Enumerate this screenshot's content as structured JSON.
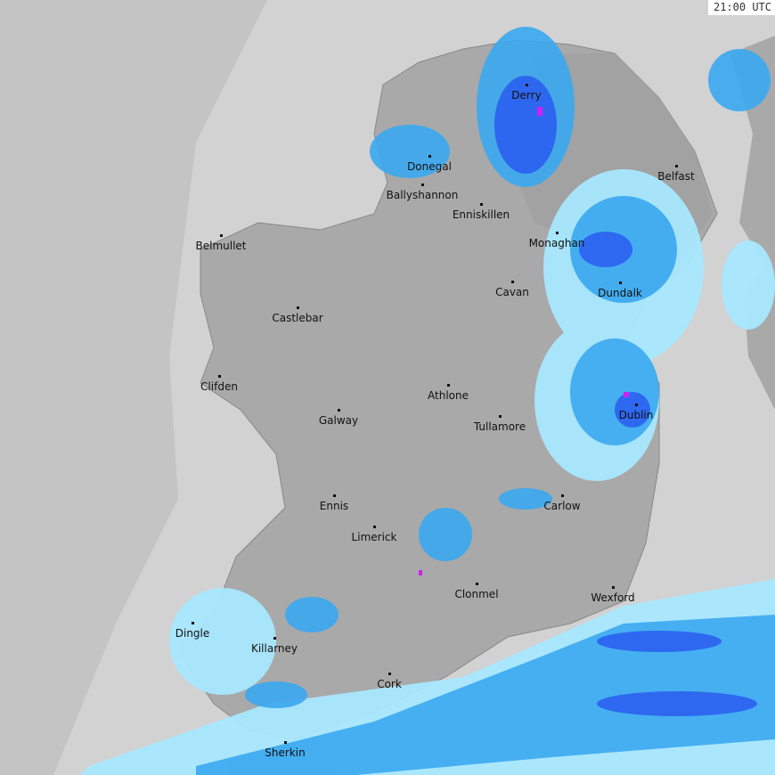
{
  "timestamp": "21:00 UTC",
  "colors": {
    "sea": "#d2d2d2",
    "ocean_far": "#c4c4c4",
    "land": "#a9a9a9",
    "rain_light": "#a8e8ff",
    "rain_moderate": "#3aa8f0",
    "rain_heavy": "#2a5cf0",
    "rain_intense": "#d020f0"
  },
  "towns": [
    {
      "name": "Derry"
    },
    {
      "name": "Donegal"
    },
    {
      "name": "Ballyshannon"
    },
    {
      "name": "Enniskillen"
    },
    {
      "name": "Belfast"
    },
    {
      "name": "Belmullet"
    },
    {
      "name": "Monaghan"
    },
    {
      "name": "Cavan"
    },
    {
      "name": "Dundalk"
    },
    {
      "name": "Castlebar"
    },
    {
      "name": "Clifden"
    },
    {
      "name": "Athlone"
    },
    {
      "name": "Galway"
    },
    {
      "name": "Tullamore"
    },
    {
      "name": "Dublin"
    },
    {
      "name": "Ennis"
    },
    {
      "name": "Carlow"
    },
    {
      "name": "Limerick"
    },
    {
      "name": "Clonmel"
    },
    {
      "name": "Wexford"
    },
    {
      "name": "Dingle"
    },
    {
      "name": "Killarney"
    },
    {
      "name": "Cork"
    },
    {
      "name": "Sherkin"
    }
  ]
}
